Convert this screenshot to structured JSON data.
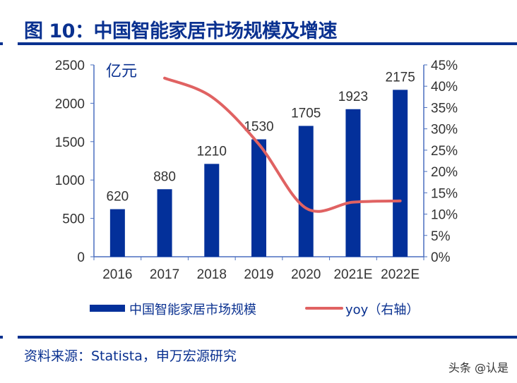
{
  "header": {
    "title": "图 10：中国智能家居市场规模及增速"
  },
  "footer": {
    "source": "资料来源：Statista，申万宏源研究",
    "watermark": "头条 @认是"
  },
  "colors": {
    "bar": "#03309a",
    "line": "#e06262",
    "axis": "#4a6fbf",
    "title": "#0a3190"
  },
  "chart_data": {
    "type": "bar+line",
    "unit_label": "亿元",
    "categories": [
      "2016",
      "2017",
      "2018",
      "2019",
      "2020",
      "2021E",
      "2022E"
    ],
    "series": [
      {
        "name": "中国智能家居市场规模",
        "type": "bar",
        "axis": "left",
        "values": [
          620,
          880,
          1210,
          1530,
          1705,
          1923,
          2175
        ]
      },
      {
        "name": "yoy（右轴）",
        "type": "line",
        "axis": "right",
        "values": [
          null,
          41.9,
          37.5,
          26.4,
          11.4,
          12.8,
          13.1
        ]
      }
    ],
    "left_axis": {
      "range": [
        0,
        2500
      ],
      "ticks": [
        "0",
        "500",
        "1000",
        "1500",
        "2000",
        "2500"
      ]
    },
    "right_axis": {
      "range": [
        0,
        45
      ],
      "ticks": [
        "0%",
        "5%",
        "10%",
        "15%",
        "20%",
        "25%",
        "30%",
        "35%",
        "40%",
        "45%"
      ]
    },
    "legend": "bottom",
    "grid": false
  }
}
